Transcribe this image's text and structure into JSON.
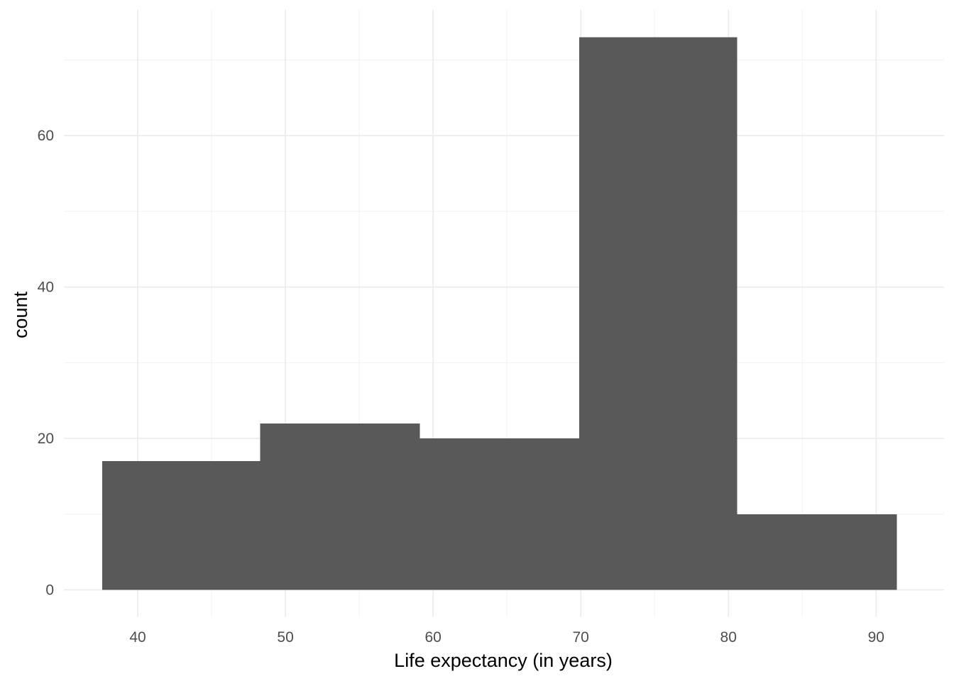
{
  "chart_data": {
    "type": "bar",
    "subtype": "histogram",
    "bins": [
      {
        "start": 37.6,
        "end": 48.3,
        "count": 17
      },
      {
        "start": 48.3,
        "end": 59.1,
        "count": 22
      },
      {
        "start": 59.1,
        "end": 69.9,
        "count": 20
      },
      {
        "start": 69.9,
        "end": 80.6,
        "count": 73
      },
      {
        "start": 80.6,
        "end": 91.4,
        "count": 10
      }
    ],
    "xlabel": "Life expectancy (in years)",
    "ylabel": "count",
    "x_ticks": [
      "40",
      "50",
      "60",
      "70",
      "80",
      "90"
    ],
    "y_ticks": [
      "0",
      "20",
      "40",
      "60"
    ],
    "xlim": [
      35,
      94.6
    ],
    "ylim": [
      -3.6,
      76.6
    ],
    "grid": true,
    "bar_color": "#595959"
  }
}
